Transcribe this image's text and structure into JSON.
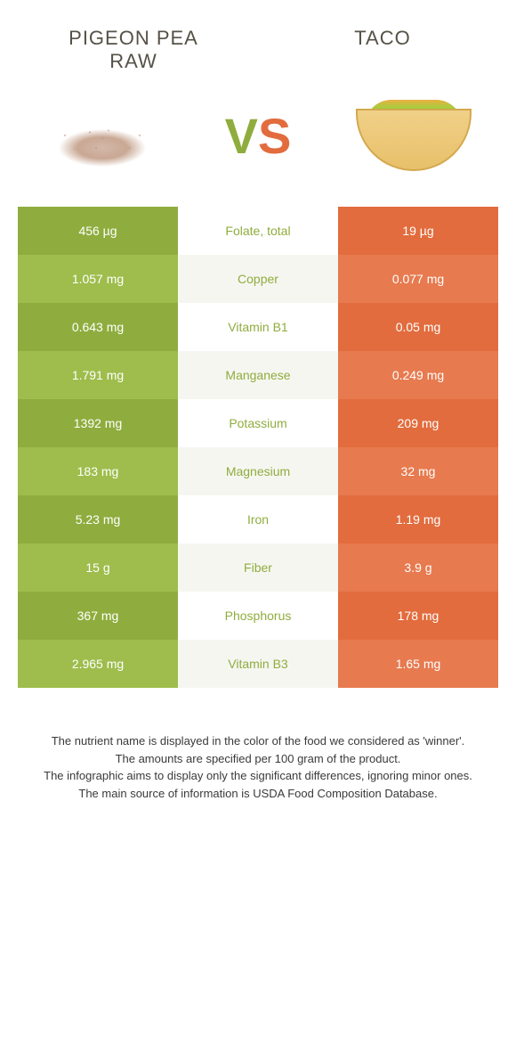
{
  "header": {
    "left_title_line1": "Pigeon pea",
    "left_title_line2": "raw",
    "right_title": "Taco"
  },
  "vs": {
    "v": "V",
    "s": "S"
  },
  "colors": {
    "green_dark": "#8fad3e",
    "green_light": "#9ebd4c",
    "orange_dark": "#e26c3d",
    "orange_light": "#e77a4f",
    "mid_text_green": "#8fad3e",
    "mid_text_orange": "#e26c3d",
    "mid_bg_even": "#ffffff",
    "mid_bg_odd": "#f6f6f1"
  },
  "rows": [
    {
      "left": "456 µg",
      "mid": "Folate, total",
      "right": "19 µg",
      "winner": "left"
    },
    {
      "left": "1.057 mg",
      "mid": "Copper",
      "right": "0.077 mg",
      "winner": "left"
    },
    {
      "left": "0.643 mg",
      "mid": "Vitamin B1",
      "right": "0.05 mg",
      "winner": "left"
    },
    {
      "left": "1.791 mg",
      "mid": "Manganese",
      "right": "0.249 mg",
      "winner": "left"
    },
    {
      "left": "1392 mg",
      "mid": "Potassium",
      "right": "209 mg",
      "winner": "left"
    },
    {
      "left": "183 mg",
      "mid": "Magnesium",
      "right": "32 mg",
      "winner": "left"
    },
    {
      "left": "5.23 mg",
      "mid": "Iron",
      "right": "1.19 mg",
      "winner": "left"
    },
    {
      "left": "15 g",
      "mid": "Fiber",
      "right": "3.9 g",
      "winner": "left"
    },
    {
      "left": "367 mg",
      "mid": "Phosphorus",
      "right": "178 mg",
      "winner": "left"
    },
    {
      "left": "2.965 mg",
      "mid": "Vitamin B3",
      "right": "1.65 mg",
      "winner": "left"
    }
  ],
  "footer": {
    "line1": "The nutrient name is displayed in the color of the food we considered as 'winner'.",
    "line2": "The amounts are specified per 100 gram of the product.",
    "line3": "The infographic aims to display only the significant differences, ignoring minor ones.",
    "line4": "The main source of information is USDA Food Composition Database."
  }
}
